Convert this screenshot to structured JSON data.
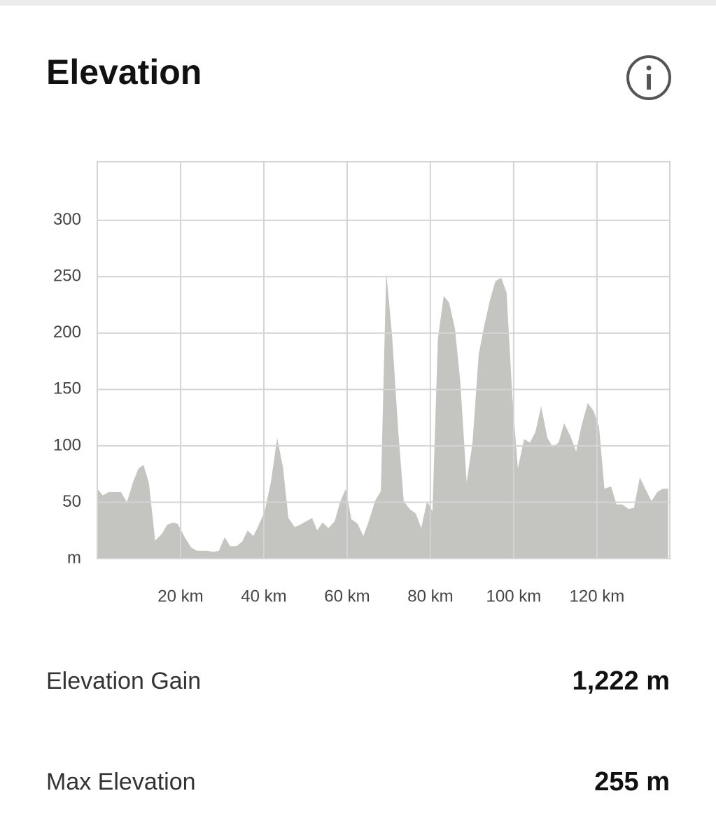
{
  "header": {
    "title": "Elevation"
  },
  "chart_data": {
    "type": "area",
    "color": "#c4c4c0",
    "x": [
      0,
      1.3,
      2.7,
      4.7,
      5.7,
      7.1,
      8.6,
      9.9,
      11.1,
      12.4,
      13.9,
      15.5,
      16.8,
      18.2,
      19.3,
      21,
      22.5,
      23.9,
      26.4,
      27.9,
      29.2,
      30.6,
      31.9,
      33.4,
      34.8,
      36.1,
      37.5,
      38.8,
      40.2,
      41.7,
      43.2,
      44.6,
      45.9,
      47.4,
      48.7,
      50.1,
      51.6,
      52.8,
      54.1,
      55.5,
      57,
      58.3,
      59.7,
      61,
      62.5,
      63.9,
      65.2,
      66.7,
      68.1,
      69.4,
      70.8,
      72.3,
      73.6,
      75,
      76.5,
      77.8,
      79.2,
      80.5,
      81.8,
      83.2,
      84.5,
      85.9,
      87.2,
      88.7,
      90.1,
      91.6,
      92.9,
      94.3,
      95.6,
      97,
      98.3,
      99.7,
      101,
      102.5,
      103.9,
      105.2,
      106.6,
      108.1,
      109.4,
      110.8,
      112.1,
      113.6,
      115,
      116.3,
      117.8,
      119.2,
      120.5,
      121.8,
      123.4,
      124.7,
      126.1,
      127.6,
      128.9,
      130.3,
      131.6,
      133.1,
      134.5,
      135.8,
      137.1
    ],
    "values": [
      62,
      56,
      59,
      59,
      59,
      50,
      68,
      80,
      83,
      67,
      16,
      22,
      30,
      32,
      31,
      19,
      10,
      7,
      7,
      6,
      7,
      19,
      11,
      11,
      15,
      25,
      20,
      30,
      42,
      68,
      107,
      81,
      36,
      28,
      30,
      33,
      36,
      25,
      32,
      27,
      33,
      50,
      62,
      35,
      31,
      20,
      33,
      51,
      60,
      254,
      198,
      112,
      51,
      44,
      40,
      27,
      51,
      42,
      195,
      233,
      227,
      204,
      156,
      68,
      102,
      181,
      206,
      229,
      246,
      249,
      236,
      143,
      80,
      106,
      103,
      112,
      135,
      107,
      99,
      103,
      120,
      109,
      95,
      118,
      138,
      131,
      117,
      62,
      64,
      48,
      48,
      44,
      45,
      72,
      62,
      51,
      59,
      62,
      62
    ],
    "xlim": [
      0,
      137.5
    ],
    "ylim": [
      0,
      352
    ],
    "xticks": [
      {
        "value": 20,
        "label": "20 km"
      },
      {
        "value": 40,
        "label": "40 km"
      },
      {
        "value": 60,
        "label": "60 km"
      },
      {
        "value": 80,
        "label": "80 km"
      },
      {
        "value": 100,
        "label": "100 km"
      },
      {
        "value": 120,
        "label": "120 km"
      }
    ],
    "yticks": [
      {
        "value": 0,
        "label": "m"
      },
      50,
      100,
      150,
      200,
      250,
      300
    ],
    "grid": true
  },
  "stats": [
    {
      "label": "Elevation Gain",
      "value": "1,222 m"
    },
    {
      "label": "Max Elevation",
      "value": "255 m"
    }
  ]
}
